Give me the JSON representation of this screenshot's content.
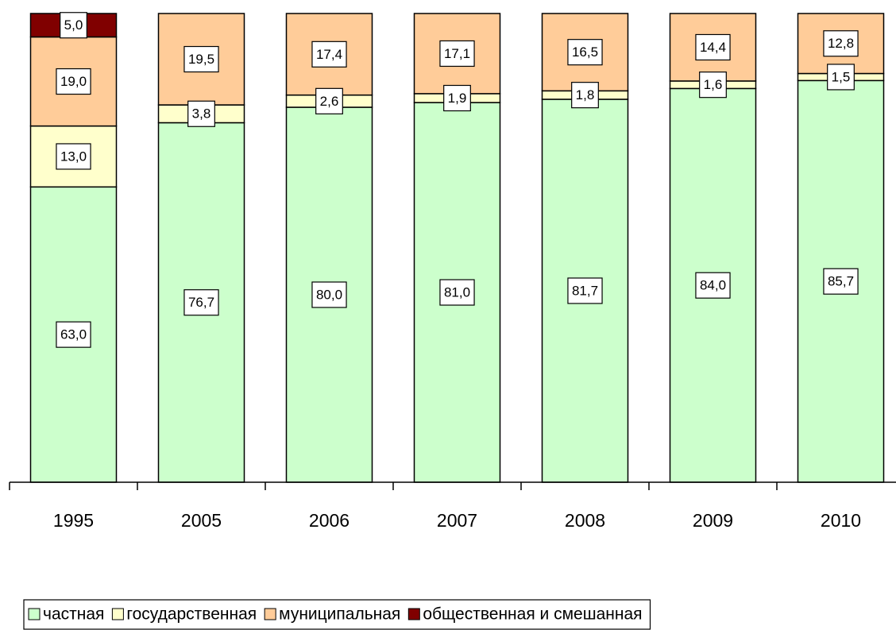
{
  "chart_data": {
    "type": "stacked-bar-100",
    "categories": [
      "1995",
      "2005",
      "2006",
      "2007",
      "2008",
      "2009",
      "2010"
    ],
    "ylim": [
      0,
      100
    ],
    "series": [
      {
        "name": "частная",
        "color": "#ccffcc",
        "values": [
          63.0,
          76.7,
          80.0,
          81.0,
          81.7,
          84.0,
          85.7
        ],
        "value_labels": [
          "63,0",
          "76,7",
          "80,0",
          "81,0",
          "81,7",
          "84,0",
          "85,7"
        ]
      },
      {
        "name": "государственная",
        "color": "#ffffcc",
        "values": [
          13.0,
          3.8,
          2.6,
          1.9,
          1.8,
          1.6,
          1.5
        ],
        "value_labels": [
          "13,0",
          "3,8",
          "2,6",
          "1,9",
          "1,8",
          "1,6",
          "1,5"
        ]
      },
      {
        "name": "муниципальная",
        "color": "#ffcc99",
        "values": [
          19.0,
          19.5,
          17.4,
          17.1,
          16.5,
          14.4,
          12.8
        ],
        "value_labels": [
          "19,0",
          "19,5",
          "17,4",
          "17,1",
          "16,5",
          "14,4",
          "12,8"
        ]
      },
      {
        "name": "общественная и смешанная",
        "color": "#800000",
        "values": [
          5.0,
          null,
          null,
          null,
          null,
          null,
          null
        ],
        "value_labels": [
          "5,0",
          null,
          null,
          null,
          null,
          null,
          null
        ]
      }
    ],
    "legend": "bottom"
  }
}
